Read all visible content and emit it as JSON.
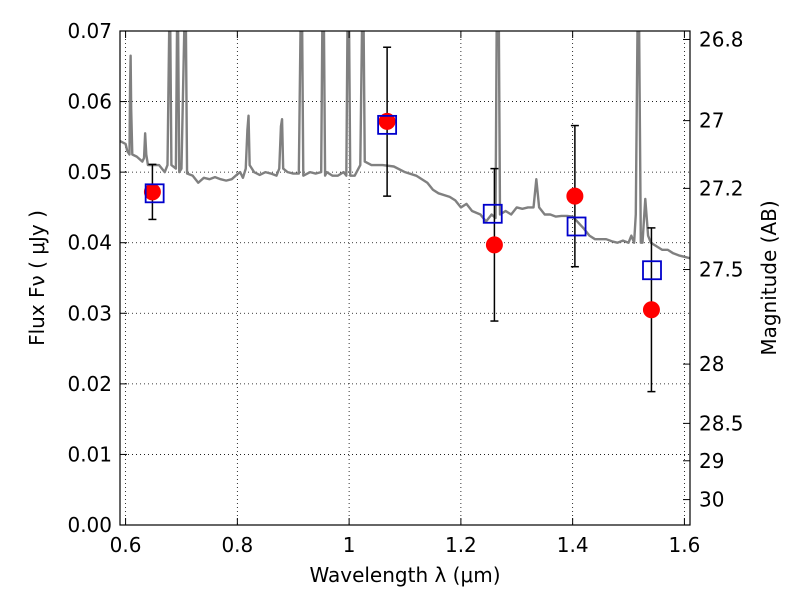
{
  "chart_data": {
    "type": "scatter",
    "xlabel": "Wavelength  λ (μm)",
    "ylabel": "Flux  Fν  ( μJy )",
    "y2label": "Magnitude (AB)",
    "xlim": [
      0.59,
      1.61
    ],
    "ylim": [
      0.0,
      0.07
    ],
    "x_ticks": [
      0.6,
      0.8,
      1.0,
      1.2,
      1.4,
      1.6
    ],
    "x_tick_labels": [
      "0.6",
      "0.8",
      "1",
      "1.2",
      "1.4",
      "1.6"
    ],
    "y_ticks": [
      0.0,
      0.01,
      0.02,
      0.03,
      0.04,
      0.05,
      0.06,
      0.07
    ],
    "y_tick_labels": [
      "0.00",
      "0.01",
      "0.02",
      "0.03",
      "0.04",
      "0.05",
      "0.06",
      "0.07"
    ],
    "y2_ticks": [
      {
        "label": "26.8",
        "flux": 0.0688
      },
      {
        "label": "27",
        "flux": 0.0573
      },
      {
        "label": "27.2",
        "flux": 0.0477
      },
      {
        "label": "27.5",
        "flux": 0.0362
      },
      {
        "label": "28",
        "flux": 0.0228
      },
      {
        "label": "28.5",
        "flux": 0.0144
      },
      {
        "label": "29",
        "flux": 0.0091
      },
      {
        "label": "30",
        "flux": 0.0036
      }
    ],
    "grid": true,
    "series": [
      {
        "kind": "line",
        "color": "#808080",
        "points": [
          [
            0.59,
            0.0544
          ],
          [
            0.6,
            0.054
          ],
          [
            0.603,
            0.053
          ],
          [
            0.607,
            0.0525
          ],
          [
            0.608,
            0.062
          ],
          [
            0.609,
            0.0665
          ],
          [
            0.61,
            0.059
          ],
          [
            0.612,
            0.0525
          ],
          [
            0.62,
            0.0522
          ],
          [
            0.63,
            0.0515
          ],
          [
            0.633,
            0.052
          ],
          [
            0.635,
            0.0555
          ],
          [
            0.637,
            0.0525
          ],
          [
            0.64,
            0.051
          ],
          [
            0.65,
            0.051
          ],
          [
            0.66,
            0.051
          ],
          [
            0.67,
            0.05
          ],
          [
            0.675,
            0.051
          ],
          [
            0.678,
            0.07
          ],
          [
            0.68,
            0.07
          ],
          [
            0.682,
            0.051
          ],
          [
            0.69,
            0.0505
          ],
          [
            0.692,
            0.07
          ],
          [
            0.694,
            0.07
          ],
          [
            0.696,
            0.05
          ],
          [
            0.7,
            0.0505
          ],
          [
            0.705,
            0.07
          ],
          [
            0.708,
            0.07
          ],
          [
            0.71,
            0.0498
          ],
          [
            0.72,
            0.0495
          ],
          [
            0.73,
            0.0485
          ],
          [
            0.74,
            0.0492
          ],
          [
            0.75,
            0.049
          ],
          [
            0.76,
            0.0493
          ],
          [
            0.77,
            0.049
          ],
          [
            0.78,
            0.0488
          ],
          [
            0.79,
            0.049
          ],
          [
            0.8,
            0.0497
          ],
          [
            0.805,
            0.05
          ],
          [
            0.81,
            0.0492
          ],
          [
            0.815,
            0.0505
          ],
          [
            0.818,
            0.056
          ],
          [
            0.82,
            0.058
          ],
          [
            0.822,
            0.051
          ],
          [
            0.83,
            0.05
          ],
          [
            0.84,
            0.0496
          ],
          [
            0.85,
            0.05
          ],
          [
            0.86,
            0.0498
          ],
          [
            0.87,
            0.0495
          ],
          [
            0.875,
            0.0505
          ],
          [
            0.878,
            0.0565
          ],
          [
            0.88,
            0.0575
          ],
          [
            0.882,
            0.0505
          ],
          [
            0.89,
            0.05
          ],
          [
            0.9,
            0.0498
          ],
          [
            0.91,
            0.0498
          ],
          [
            0.913,
            0.07
          ],
          [
            0.916,
            0.07
          ],
          [
            0.918,
            0.0495
          ],
          [
            0.93,
            0.05
          ],
          [
            0.94,
            0.0498
          ],
          [
            0.95,
            0.05
          ],
          [
            0.952,
            0.07
          ],
          [
            0.955,
            0.07
          ],
          [
            0.957,
            0.0495
          ],
          [
            0.96,
            0.05
          ],
          [
            0.97,
            0.0495
          ],
          [
            0.98,
            0.0495
          ],
          [
            0.99,
            0.05
          ],
          [
            0.995,
            0.0495
          ],
          [
            0.997,
            0.07
          ],
          [
            1.0,
            0.07
          ],
          [
            1.002,
            0.0495
          ],
          [
            1.01,
            0.0495
          ],
          [
            1.02,
            0.051
          ],
          [
            1.023,
            0.07
          ],
          [
            1.026,
            0.07
          ],
          [
            1.028,
            0.0515
          ],
          [
            1.04,
            0.051
          ],
          [
            1.05,
            0.051
          ],
          [
            1.06,
            0.051
          ],
          [
            1.08,
            0.0508
          ],
          [
            1.1,
            0.05
          ],
          [
            1.12,
            0.0495
          ],
          [
            1.14,
            0.0485
          ],
          [
            1.15,
            0.0475
          ],
          [
            1.16,
            0.047
          ],
          [
            1.18,
            0.0465
          ],
          [
            1.19,
            0.046
          ],
          [
            1.2,
            0.045
          ],
          [
            1.21,
            0.0455
          ],
          [
            1.22,
            0.0445
          ],
          [
            1.235,
            0.044
          ],
          [
            1.245,
            0.043
          ],
          [
            1.255,
            0.044
          ],
          [
            1.262,
            0.0435
          ],
          [
            1.264,
            0.07
          ],
          [
            1.268,
            0.07
          ],
          [
            1.27,
            0.044
          ],
          [
            1.28,
            0.0445
          ],
          [
            1.29,
            0.044
          ],
          [
            1.3,
            0.045
          ],
          [
            1.31,
            0.0448
          ],
          [
            1.32,
            0.045
          ],
          [
            1.33,
            0.045
          ],
          [
            1.335,
            0.049
          ],
          [
            1.34,
            0.045
          ],
          [
            1.35,
            0.044
          ],
          [
            1.36,
            0.044
          ],
          [
            1.37,
            0.0437
          ],
          [
            1.38,
            0.0438
          ],
          [
            1.39,
            0.0438
          ],
          [
            1.4,
            0.0437
          ],
          [
            1.42,
            0.042
          ],
          [
            1.43,
            0.041
          ],
          [
            1.44,
            0.0405
          ],
          [
            1.46,
            0.0405
          ],
          [
            1.47,
            0.0402
          ],
          [
            1.48,
            0.04
          ],
          [
            1.49,
            0.0403
          ],
          [
            1.5,
            0.04
          ],
          [
            1.505,
            0.041
          ],
          [
            1.51,
            0.04
          ],
          [
            1.513,
            0.044
          ],
          [
            1.516,
            0.07
          ],
          [
            1.519,
            0.07
          ],
          [
            1.522,
            0.04
          ],
          [
            1.525,
            0.04
          ],
          [
            1.53,
            0.0462
          ],
          [
            1.535,
            0.041
          ],
          [
            1.54,
            0.04
          ],
          [
            1.55,
            0.0395
          ],
          [
            1.56,
            0.039
          ],
          [
            1.57,
            0.039
          ],
          [
            1.58,
            0.0385
          ],
          [
            1.59,
            0.0382
          ],
          [
            1.6,
            0.038
          ],
          [
            1.61,
            0.0378
          ]
        ]
      },
      {
        "kind": "errorbar",
        "color": "#000000",
        "points": [
          {
            "x": 0.648,
            "y": 0.0472,
            "lo": 0.0433,
            "hi": 0.0511
          },
          {
            "x": 1.068,
            "y": 0.0572,
            "lo": 0.0466,
            "hi": 0.0677
          },
          {
            "x": 1.26,
            "y": 0.0397,
            "lo": 0.0289,
            "hi": 0.0505
          },
          {
            "x": 1.404,
            "y": 0.0466,
            "lo": 0.0366,
            "hi": 0.0566
          },
          {
            "x": 1.541,
            "y": 0.0305,
            "lo": 0.0189,
            "hi": 0.0421
          }
        ]
      },
      {
        "kind": "scatter",
        "marker": "circle",
        "color": "#ff0000",
        "points": [
          [
            0.648,
            0.0472
          ],
          [
            1.068,
            0.0572
          ],
          [
            1.26,
            0.0397
          ],
          [
            1.404,
            0.0466
          ],
          [
            1.541,
            0.0305
          ]
        ]
      },
      {
        "kind": "scatter",
        "marker": "open-square",
        "color": "#0000cc",
        "points": [
          [
            0.652,
            0.047
          ],
          [
            1.068,
            0.0567
          ],
          [
            1.257,
            0.0441
          ],
          [
            1.407,
            0.0423
          ],
          [
            1.542,
            0.0361
          ]
        ]
      }
    ]
  }
}
